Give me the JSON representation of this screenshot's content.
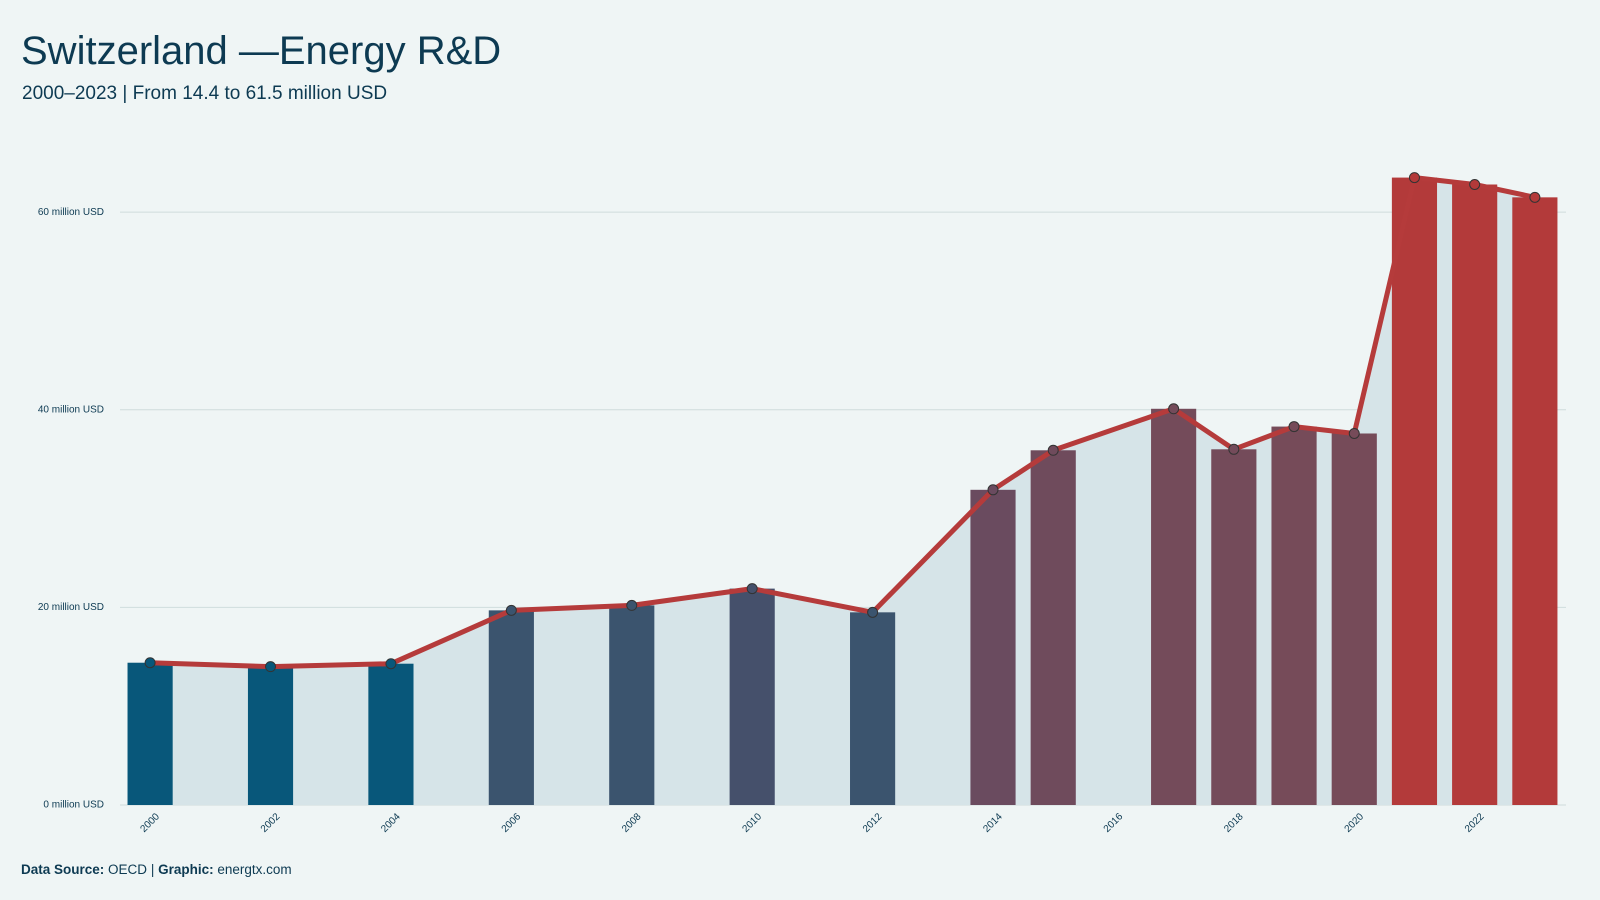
{
  "chart_data": {
    "type": "bar",
    "title": "Switzerland —Energy R&D",
    "subtitle": "2000–2023 | From 14.4 to 61.5 million USD",
    "x": [
      2000,
      2002,
      2004,
      2006,
      2008,
      2010,
      2012,
      2014,
      2015,
      2017,
      2018,
      2019,
      2020,
      2021,
      2022,
      2023
    ],
    "values": [
      14.4,
      14.0,
      14.3,
      19.7,
      20.2,
      21.9,
      19.5,
      31.9,
      35.9,
      40.1,
      36.0,
      38.3,
      37.6,
      63.5,
      62.8,
      61.5
    ],
    "colors": [
      "#08577a",
      "#08577a",
      "#08577a",
      "#3b546e",
      "#3b546e",
      "#45506b",
      "#3b546e",
      "#6a4b5f",
      "#6f4b5c",
      "#744b5a",
      "#744b5a",
      "#764b59",
      "#764b59",
      "#b33a3a",
      "#b33a3a",
      "#b33a3a"
    ],
    "line_color": "#b53b3b",
    "area_color": "#d6e4e8",
    "xlim": [
      1999.5,
      2023.6
    ],
    "xticks": [
      2000,
      2002,
      2004,
      2006,
      2008,
      2010,
      2012,
      2014,
      2016,
      2018,
      2020,
      2022
    ],
    "ylim": [
      0,
      67
    ],
    "yticks": [
      {
        "value": 0,
        "label": "0 million USD"
      },
      {
        "value": 20,
        "label": "20 million USD"
      },
      {
        "value": 40,
        "label": "40 million USD"
      },
      {
        "value": 60,
        "label": "60 million USD"
      }
    ],
    "grid": true,
    "source_label": "Data Source:",
    "source": "OECD",
    "separator": "|",
    "graphic_label": "Graphic:",
    "graphic": "energtx.com"
  }
}
